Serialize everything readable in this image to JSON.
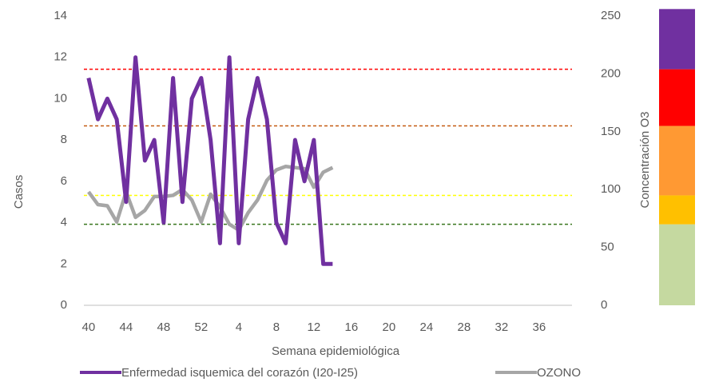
{
  "chart_data": {
    "type": "line",
    "x_label": "Semana epidemiológica",
    "y_label": "Casos",
    "y2_label": "Concentración O3",
    "categories": [
      40,
      null,
      null,
      null,
      44,
      null,
      null,
      null,
      48,
      null,
      null,
      null,
      52,
      null,
      null,
      null,
      4,
      null,
      null,
      null,
      8,
      null,
      null,
      null,
      12,
      null,
      null,
      null,
      16,
      null,
      null,
      null,
      20,
      null,
      null,
      null,
      24,
      null,
      null,
      null,
      28,
      null,
      null,
      null,
      32,
      null,
      null,
      null,
      36,
      null,
      null,
      null
    ],
    "series": [
      {
        "name": "Enfermedad isquemica del corazón (I20-I25)",
        "color": "#7030a0",
        "axis": "y",
        "values": [
          11,
          9,
          10,
          9,
          5,
          12,
          7,
          8,
          4,
          11,
          5,
          10,
          11,
          8,
          3,
          12,
          3,
          9,
          11,
          9,
          4,
          3,
          8,
          6,
          8,
          2,
          2,
          null,
          null,
          null,
          null,
          null,
          null,
          null,
          null,
          null,
          null,
          null,
          null,
          null,
          null,
          null,
          null,
          null,
          null,
          null,
          null,
          null,
          null,
          null,
          null,
          null
        ]
      },
      {
        "name": "OZONO",
        "color": "#a6a6a6",
        "axis": "y2",
        "values": [
          98,
          87,
          86,
          72,
          98,
          76,
          82,
          94,
          94,
          95,
          100,
          91,
          72,
          96,
          85,
          70,
          65,
          80,
          91,
          108,
          117,
          120,
          119,
          118,
          102,
          115,
          119,
          null,
          null,
          null,
          null,
          null,
          null,
          null,
          null,
          null,
          null,
          null,
          null,
          null,
          null,
          null,
          null,
          null,
          null,
          null,
          null,
          null,
          null,
          null,
          null,
          null
        ]
      }
    ],
    "ylim": [
      0,
      14
    ],
    "yticks": [
      0,
      2,
      4,
      6,
      8,
      10,
      12,
      14
    ],
    "y2lim": [
      0,
      250
    ],
    "y2ticks": [
      0,
      50,
      100,
      150,
      200,
      250
    ],
    "thresholds": [
      {
        "value": 70,
        "color": "#38761d"
      },
      {
        "value": 95,
        "color": "#ffff00"
      },
      {
        "value": 155,
        "color": "#c55a11"
      },
      {
        "value": 204,
        "color": "#ff0000"
      }
    ],
    "bands": [
      {
        "from": 0,
        "to": 70,
        "color": "#c5d9a0"
      },
      {
        "from": 70,
        "to": 95,
        "color": "#ffc000"
      },
      {
        "from": 95,
        "to": 155,
        "color": "#ff9933"
      },
      {
        "from": 155,
        "to": 204,
        "color": "#ff0000"
      },
      {
        "from": 204,
        "to": 256,
        "color": "#7030a0"
      }
    ],
    "grid": false
  }
}
